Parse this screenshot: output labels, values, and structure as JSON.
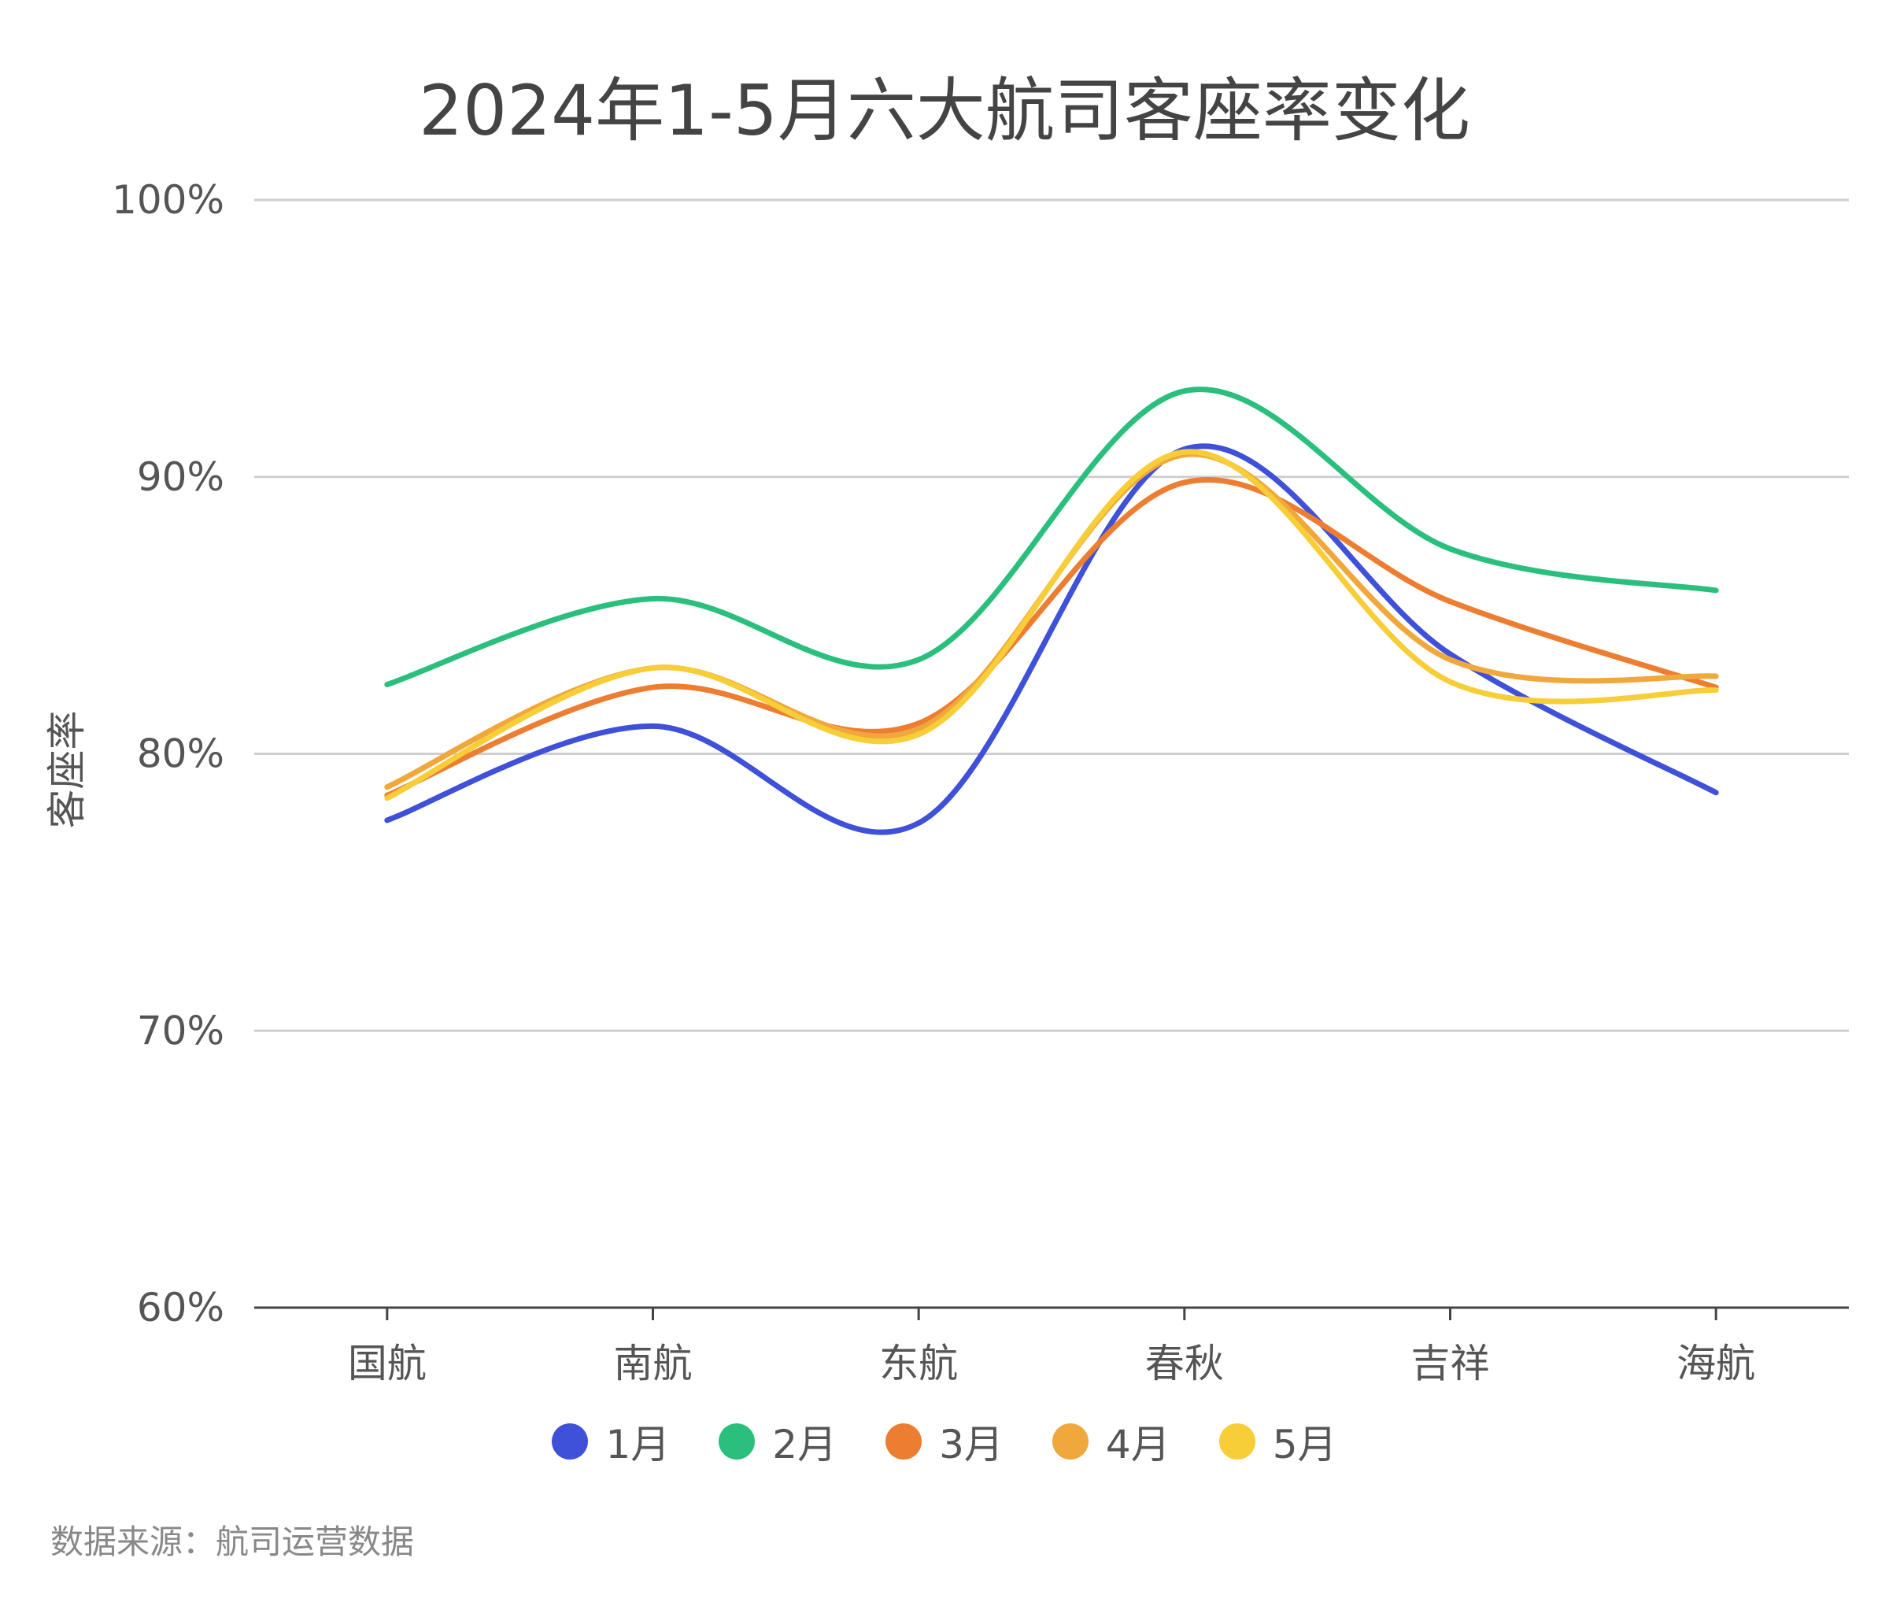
{
  "chart_data": {
    "type": "line",
    "title": "2024年1-5月六大航司客座率变化",
    "xlabel": "",
    "ylabel": "客座率",
    "categories": [
      "国航",
      "南航",
      "东航",
      "春秋",
      "吉祥",
      "海航"
    ],
    "ylim": [
      60,
      100
    ],
    "yticks": [
      "60%",
      "70%",
      "80%",
      "90%",
      "100%"
    ],
    "ytick_values": [
      60,
      70,
      80,
      90,
      100
    ],
    "grid": true,
    "smooth": true,
    "legend_position": "bottom",
    "series": [
      {
        "name": "1月",
        "color": "#3F51D8",
        "values": [
          77.6,
          81.0,
          77.5,
          91.0,
          83.6,
          78.6
        ]
      },
      {
        "name": "2月",
        "color": "#2BBF7E",
        "values": [
          82.5,
          85.6,
          83.4,
          93.1,
          87.4,
          85.9
        ]
      },
      {
        "name": "3月",
        "color": "#ED7D31",
        "values": [
          78.5,
          82.4,
          81.1,
          89.8,
          85.5,
          82.4
        ]
      },
      {
        "name": "4月",
        "color": "#F0A83C",
        "values": [
          78.8,
          83.1,
          80.9,
          90.8,
          83.4,
          82.8
        ]
      },
      {
        "name": "5月",
        "color": "#F7CD38",
        "values": [
          78.4,
          83.1,
          80.7,
          90.9,
          82.6,
          82.3
        ]
      }
    ]
  },
  "source": "数据来源：航司运营数据"
}
